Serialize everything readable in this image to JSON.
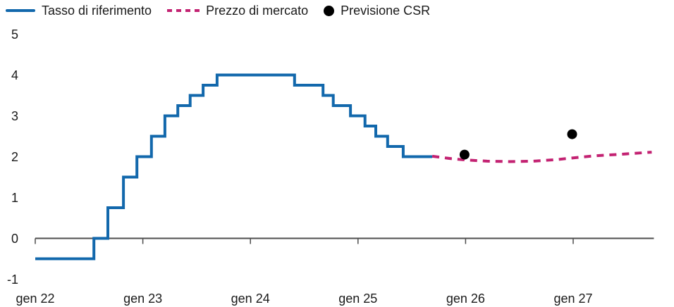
{
  "page": {
    "background_color": "#ffffff"
  },
  "chart_data": {
    "type": "line",
    "title": "",
    "xlabel": "",
    "ylabel": "",
    "x_unit": "decimal year (gen 22 = 2022.0)",
    "y_unit": "percent",
    "xlim": [
      2022,
      2027.75
    ],
    "ylim": [
      -1,
      5
    ],
    "grid": false,
    "legend_position": "top-left",
    "axis_color": "#4d4d4d",
    "text_color": "#1a1a1a",
    "y_ticks": [
      -1,
      0,
      1,
      2,
      3,
      4,
      5
    ],
    "x_ticks": [
      {
        "t": 2022,
        "label": "gen 22"
      },
      {
        "t": 2023,
        "label": "gen 23"
      },
      {
        "t": 2024,
        "label": "gen 24"
      },
      {
        "t": 2025,
        "label": "gen 25"
      },
      {
        "t": 2026,
        "label": "gen 26"
      },
      {
        "t": 2027,
        "label": "gen 27"
      }
    ],
    "series": [
      {
        "name": "Tasso di riferimento",
        "style": "solid-step",
        "color": "#1268ac",
        "line_width": 4,
        "points": [
          [
            2022.0,
            -0.5
          ],
          [
            2022.545,
            0
          ],
          [
            2022.675,
            0.75
          ],
          [
            2022.82,
            1.5
          ],
          [
            2022.945,
            2.0
          ],
          [
            2023.08,
            2.5
          ],
          [
            2023.205,
            3.0
          ],
          [
            2023.325,
            3.25
          ],
          [
            2023.44,
            3.5
          ],
          [
            2023.56,
            3.75
          ],
          [
            2023.69,
            4.0
          ],
          [
            2024.41,
            3.75
          ],
          [
            2024.675,
            3.5
          ],
          [
            2024.77,
            3.25
          ],
          [
            2024.93,
            3.0
          ],
          [
            2025.065,
            2.75
          ],
          [
            2025.165,
            2.5
          ],
          [
            2025.275,
            2.25
          ],
          [
            2025.42,
            2.0
          ]
        ],
        "end_t": 2025.69
      },
      {
        "name": "Prezzo di mercato",
        "style": "dashed",
        "color": "#c32272",
        "line_width": 4,
        "points": [
          [
            2025.69,
            2.01
          ],
          [
            2025.87,
            1.95
          ],
          [
            2026.0,
            1.92
          ],
          [
            2026.2,
            1.89
          ],
          [
            2026.41,
            1.88
          ],
          [
            2026.63,
            1.89
          ],
          [
            2026.85,
            1.93
          ],
          [
            2027.0,
            1.97
          ],
          [
            2027.2,
            2.02
          ],
          [
            2027.45,
            2.06
          ],
          [
            2027.73,
            2.11
          ]
        ]
      },
      {
        "name": "Previsione CSR",
        "style": "scatter-dot",
        "color": "#000000",
        "dot_radius": 7,
        "points": [
          [
            2025.99,
            2.05
          ],
          [
            2026.99,
            2.55
          ]
        ]
      }
    ]
  }
}
